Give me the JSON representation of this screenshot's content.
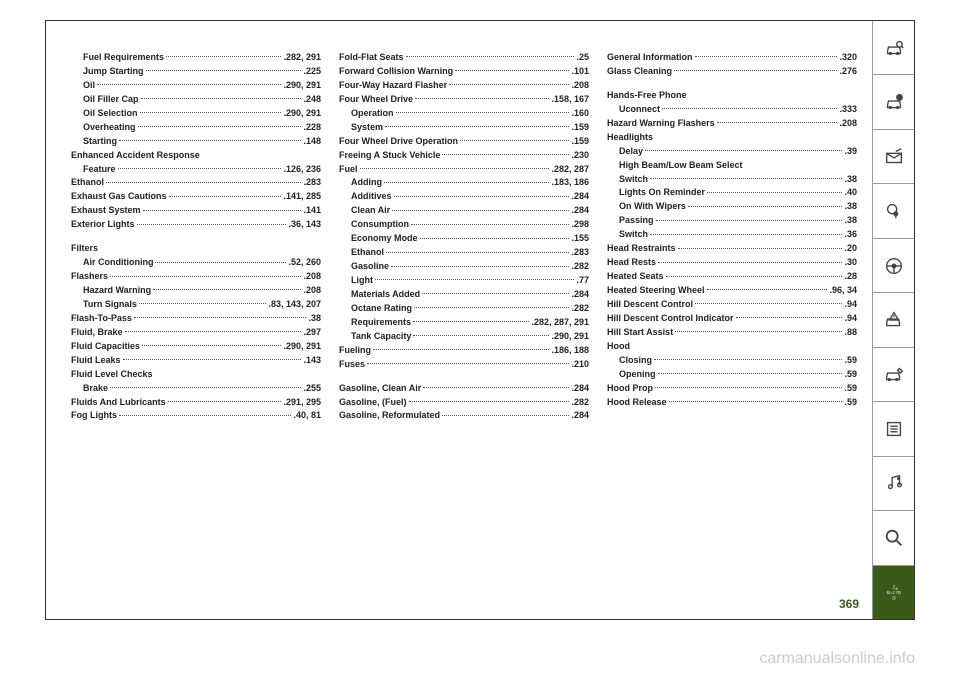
{
  "page_number": "369",
  "footer_text": "carmanualsonline.info",
  "columns": [
    [
      {
        "label": "Fuel Requirements",
        "page": ".282, 291",
        "indent": true
      },
      {
        "label": "Jump Starting",
        "page": ".225",
        "indent": true
      },
      {
        "label": "Oil",
        "page": ".290, 291",
        "indent": true
      },
      {
        "label": "Oil Filler Cap",
        "page": ".248",
        "indent": true
      },
      {
        "label": "Oil Selection",
        "page": ".290, 291",
        "indent": true
      },
      {
        "label": "Overheating",
        "page": ".228",
        "indent": true
      },
      {
        "label": "Starting",
        "page": ".148",
        "indent": true
      },
      {
        "label": "Enhanced Accident Response",
        "page": "",
        "indent": false,
        "nodots": true
      },
      {
        "label": "Feature",
        "page": ".126, 236",
        "indent": true
      },
      {
        "label": "Ethanol",
        "page": ".283",
        "indent": false
      },
      {
        "label": "Exhaust Gas Cautions",
        "page": ".141, 285",
        "indent": false
      },
      {
        "label": "Exhaust System",
        "page": ".141",
        "indent": false
      },
      {
        "label": "Exterior Lights",
        "page": ".36, 143",
        "indent": false
      },
      {
        "spacer": true
      },
      {
        "label": "Filters",
        "page": "",
        "indent": false,
        "nodots": true
      },
      {
        "label": "Air Conditioning",
        "page": ".52, 260",
        "indent": true
      },
      {
        "label": "Flashers",
        "page": ".208",
        "indent": false
      },
      {
        "label": "Hazard Warning",
        "page": ".208",
        "indent": true
      },
      {
        "label": "Turn Signals",
        "page": ".83, 143, 207",
        "indent": true
      },
      {
        "label": "Flash-To-Pass",
        "page": ".38",
        "indent": false
      },
      {
        "label": "Fluid, Brake",
        "page": ".297",
        "indent": false
      },
      {
        "label": "Fluid Capacities",
        "page": ".290, 291",
        "indent": false
      },
      {
        "label": "Fluid Leaks",
        "page": ".143",
        "indent": false
      },
      {
        "label": "Fluid Level Checks",
        "page": "",
        "indent": false,
        "nodots": true
      },
      {
        "label": "Brake",
        "page": ".255",
        "indent": true
      },
      {
        "label": "Fluids And Lubricants",
        "page": ".291, 295",
        "indent": false
      },
      {
        "label": "Fog Lights",
        "page": ".40, 81",
        "indent": false
      }
    ],
    [
      {
        "label": "Fold-Flat Seats",
        "page": ".25",
        "indent": false
      },
      {
        "label": "Forward Collision Warning",
        "page": ".101",
        "indent": false
      },
      {
        "label": "Four-Way Hazard Flasher",
        "page": ".208",
        "indent": false
      },
      {
        "label": "Four Wheel Drive",
        "page": ".158, 167",
        "indent": false
      },
      {
        "label": "Operation",
        "page": ".160",
        "indent": true
      },
      {
        "label": "System",
        "page": ".159",
        "indent": true
      },
      {
        "label": "Four Wheel Drive Operation",
        "page": ".159",
        "indent": false
      },
      {
        "label": "Freeing A Stuck Vehicle",
        "page": ".230",
        "indent": false
      },
      {
        "label": "Fuel",
        "page": ".282, 287",
        "indent": false
      },
      {
        "label": "Adding",
        "page": ".183, 186",
        "indent": true
      },
      {
        "label": "Additives",
        "page": ".284",
        "indent": true
      },
      {
        "label": "Clean Air",
        "page": ".284",
        "indent": true
      },
      {
        "label": "Consumption",
        "page": ".298",
        "indent": true
      },
      {
        "label": "Economy Mode",
        "page": ".155",
        "indent": true
      },
      {
        "label": "Ethanol",
        "page": ".283",
        "indent": true
      },
      {
        "label": "Gasoline",
        "page": ".282",
        "indent": true
      },
      {
        "label": "Light",
        "page": ".77",
        "indent": true
      },
      {
        "label": "Materials Added",
        "page": ".284",
        "indent": true
      },
      {
        "label": "Octane Rating",
        "page": ".282",
        "indent": true
      },
      {
        "label": "Requirements",
        "page": ".282, 287, 291",
        "indent": true
      },
      {
        "label": "Tank Capacity",
        "page": ".290, 291",
        "indent": true
      },
      {
        "label": "Fueling",
        "page": ".186, 188",
        "indent": false
      },
      {
        "label": "Fuses",
        "page": ".210",
        "indent": false
      },
      {
        "spacer": true
      },
      {
        "label": "Gasoline, Clean Air",
        "page": ".284",
        "indent": false
      },
      {
        "label": "Gasoline, (Fuel)",
        "page": ".282",
        "indent": false
      },
      {
        "label": "Gasoline, Reformulated",
        "page": ".284",
        "indent": false
      }
    ],
    [
      {
        "label": "General Information",
        "page": ".320",
        "indent": false
      },
      {
        "label": "Glass Cleaning",
        "page": ".276",
        "indent": false
      },
      {
        "spacer": true
      },
      {
        "label": "Hands-Free Phone",
        "page": "",
        "indent": false,
        "nodots": true
      },
      {
        "label": "Uconnect",
        "page": ".333",
        "indent": true
      },
      {
        "label": "Hazard Warning Flashers",
        "page": ".208",
        "indent": false
      },
      {
        "label": "Headlights",
        "page": "",
        "indent": false,
        "nodots": true
      },
      {
        "label": "Delay",
        "page": ".39",
        "indent": true
      },
      {
        "label": "High Beam/Low Beam Select",
        "page": "",
        "indent": true,
        "nodots": true
      },
      {
        "label": "Switch",
        "page": ".38",
        "indent": true
      },
      {
        "label": "Lights On Reminder",
        "page": ".40",
        "indent": true
      },
      {
        "label": "On With Wipers",
        "page": ".38",
        "indent": true
      },
      {
        "label": "Passing",
        "page": ".38",
        "indent": true
      },
      {
        "label": "Switch",
        "page": ".36",
        "indent": true
      },
      {
        "label": "Head Restraints",
        "page": ".20",
        "indent": false
      },
      {
        "label": "Head Rests",
        "page": ".30",
        "indent": false
      },
      {
        "label": "Heated Seats",
        "page": ".28",
        "indent": false
      },
      {
        "label": "Heated Steering Wheel",
        "page": ".96, 34",
        "indent": false
      },
      {
        "label": "Hill Descent Control",
        "page": ".94",
        "indent": false
      },
      {
        "label": "Hill Descent Control Indicator",
        "page": ".94",
        "indent": false
      },
      {
        "label": "Hill Start Assist",
        "page": ".88",
        "indent": false
      },
      {
        "label": "Hood",
        "page": "",
        "indent": false,
        "nodots": true
      },
      {
        "label": "Closing",
        "page": ".59",
        "indent": true
      },
      {
        "label": "Opening",
        "page": ".59",
        "indent": true
      },
      {
        "label": "Hood Prop",
        "page": ".59",
        "indent": false
      },
      {
        "label": "Hood Release",
        "page": ".59",
        "indent": false
      }
    ]
  ],
  "icons": [
    {
      "name": "car-search-icon"
    },
    {
      "name": "car-info-icon"
    },
    {
      "name": "mail-icon"
    },
    {
      "name": "airbag-icon"
    },
    {
      "name": "steering-icon"
    },
    {
      "name": "warning-icon"
    },
    {
      "name": "service-icon"
    },
    {
      "name": "list-icon"
    },
    {
      "name": "media-icon"
    },
    {
      "name": "search-icon"
    },
    {
      "name": "index-icon",
      "active": true
    }
  ]
}
